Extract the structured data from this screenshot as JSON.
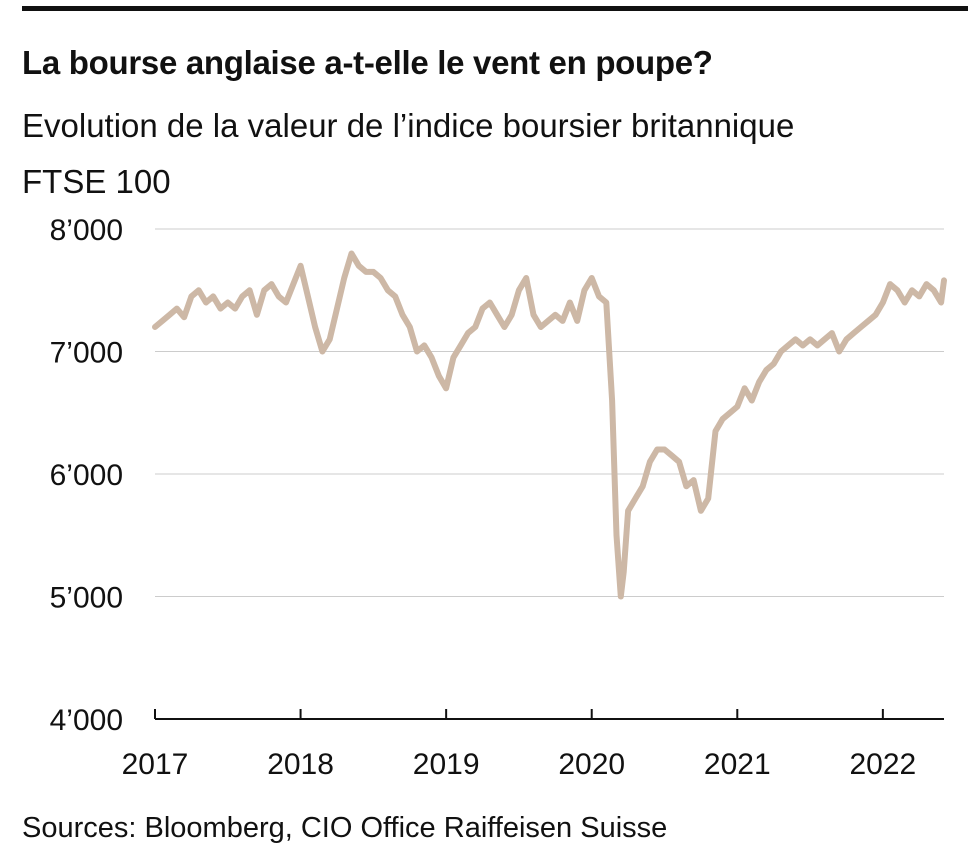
{
  "header": {
    "title": "La bourse anglaise a-t-elle le vent en poupe?",
    "subtitle_line1": "Evolution de la valeur de l’indice boursier britannique",
    "subtitle_line2": "FTSE 100"
  },
  "footer": {
    "source": "Sources: Bloomberg, CIO Office Raiffeisen Suisse"
  },
  "colors": {
    "line": "#cdb8a6",
    "grid": "#cccccc",
    "axis": "#111111"
  },
  "chart_data": {
    "type": "line",
    "title": "La bourse anglaise a-t-elle le vent en poupe?",
    "subtitle": "Evolution de la valeur de l’indice boursier britannique FTSE 100",
    "xlabel": "",
    "ylabel": "",
    "xlim": [
      2017.0,
      2022.42
    ],
    "ylim": [
      4000,
      8000
    ],
    "yticks": [
      4000,
      5000,
      6000,
      7000,
      8000
    ],
    "ytick_labels": [
      "4’000",
      "5’000",
      "6’000",
      "7’000",
      "8’000"
    ],
    "xticks": [
      2017,
      2018,
      2019,
      2020,
      2021,
      2022
    ],
    "xtick_labels": [
      "2017",
      "2018",
      "2019",
      "2020",
      "2021",
      "2022"
    ],
    "grid": "horizontal",
    "series": [
      {
        "x": [
          2017.0,
          2017.05,
          2017.1,
          2017.15,
          2017.2,
          2017.25,
          2017.3,
          2017.35,
          2017.4,
          2017.45,
          2017.5,
          2017.55,
          2017.6,
          2017.65,
          2017.7,
          2017.75,
          2017.8,
          2017.85,
          2017.9,
          2017.95,
          2018.0,
          2018.05,
          2018.1,
          2018.15,
          2018.2,
          2018.25,
          2018.3,
          2018.35,
          2018.4,
          2018.45,
          2018.5,
          2018.55,
          2018.6,
          2018.65,
          2018.7,
          2018.75,
          2018.8,
          2018.85,
          2018.9,
          2018.95,
          2019.0,
          2019.05,
          2019.1,
          2019.15,
          2019.2,
          2019.25,
          2019.3,
          2019.35,
          2019.4,
          2019.45,
          2019.5,
          2019.55,
          2019.6,
          2019.65,
          2019.7,
          2019.75,
          2019.8,
          2019.85,
          2019.9,
          2019.95,
          2020.0,
          2020.05,
          2020.1,
          2020.14,
          2020.17,
          2020.2,
          2020.22,
          2020.25,
          2020.3,
          2020.35,
          2020.4,
          2020.45,
          2020.5,
          2020.55,
          2020.6,
          2020.65,
          2020.7,
          2020.75,
          2020.8,
          2020.85,
          2020.9,
          2020.95,
          2021.0,
          2021.05,
          2021.1,
          2021.15,
          2021.2,
          2021.25,
          2021.3,
          2021.35,
          2021.4,
          2021.45,
          2021.5,
          2021.55,
          2021.6,
          2021.65,
          2021.7,
          2021.75,
          2021.8,
          2021.85,
          2021.9,
          2021.95,
          2022.0,
          2022.05,
          2022.1,
          2022.15,
          2022.2,
          2022.25,
          2022.3,
          2022.35,
          2022.4,
          2022.42
        ],
        "y": [
          7200,
          7250,
          7300,
          7350,
          7280,
          7450,
          7500,
          7400,
          7450,
          7350,
          7400,
          7350,
          7450,
          7500,
          7300,
          7500,
          7550,
          7450,
          7400,
          7550,
          7700,
          7450,
          7200,
          7000,
          7100,
          7350,
          7600,
          7800,
          7700,
          7650,
          7650,
          7600,
          7500,
          7450,
          7300,
          7200,
          7000,
          7050,
          6950,
          6800,
          6700,
          6950,
          7050,
          7150,
          7200,
          7350,
          7400,
          7300,
          7200,
          7300,
          7500,
          7600,
          7300,
          7200,
          7250,
          7300,
          7250,
          7400,
          7250,
          7500,
          7600,
          7450,
          7400,
          6600,
          5500,
          5000,
          5200,
          5700,
          5800,
          5900,
          6100,
          6200,
          6200,
          6150,
          6100,
          5900,
          5950,
          5700,
          5800,
          6350,
          6450,
          6500,
          6550,
          6700,
          6600,
          6750,
          6850,
          6900,
          7000,
          7050,
          7100,
          7050,
          7100,
          7050,
          7100,
          7150,
          7000,
          7100,
          7150,
          7200,
          7250,
          7300,
          7400,
          7550,
          7500,
          7400,
          7500,
          7450,
          7550,
          7500,
          7400,
          7580
        ]
      }
    ],
    "annotations": []
  }
}
